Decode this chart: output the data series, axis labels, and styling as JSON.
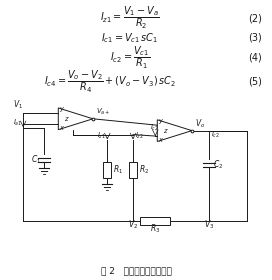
{
  "title": "图 2   二阶通用滤波器电路",
  "bg_color": "#ffffff",
  "text_color": "#1a1a1a",
  "line_color": "#1a1a1a",
  "fig_width": 2.72,
  "fig_height": 2.8,
  "dpi": 100,
  "eq2": "$I_{z1} = \\dfrac{V_1 - V_a}{R_2}$",
  "eq3": "$I_{c1} = V_{c1}\\,sC_1$",
  "eq4": "$I_{c2} = \\dfrac{V_{c1}}{R_1}$",
  "eq5": "$I_{c4} = \\dfrac{V_o - V_2}{R_4} + (V_o - V_3)\\,sC_2$",
  "num2": "(2)",
  "num3": "(3)",
  "num4": "(4)",
  "num5": "(5)",
  "caption": "图 2   二阶通用滤波器电路"
}
